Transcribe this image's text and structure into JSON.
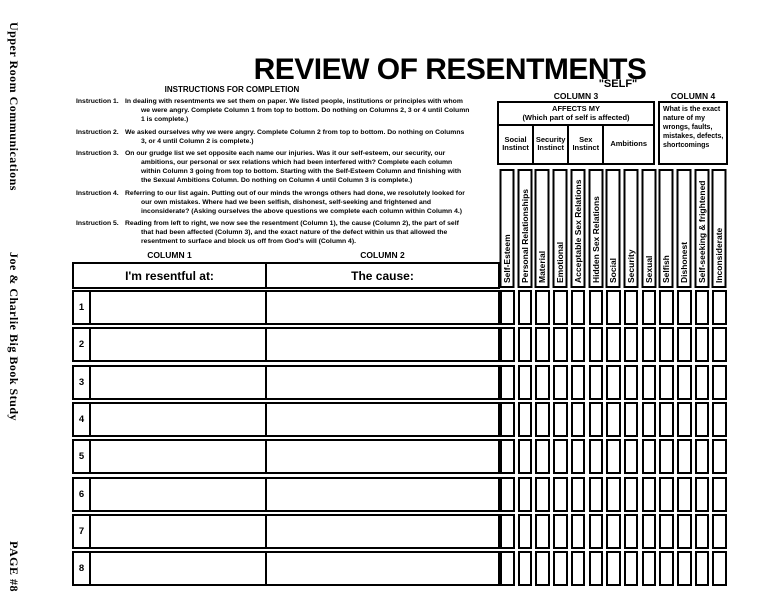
{
  "colors": {
    "ink": "#000000",
    "paper": "#ffffff"
  },
  "page": {
    "side_top": "Upper Room Communications",
    "side_middle": "Joe & Charlie Big Book Study",
    "side_bottom": "PAGE #8",
    "title": "REVIEW OF RESENTMENTS",
    "self_label": "\"SELF\""
  },
  "instructions": {
    "heading": "INSTRUCTIONS FOR COMPLETION",
    "items": [
      {
        "label": "Instruction 1.",
        "text": "In dealing with resentments we set them on paper. We listed people, institutions or principles with whom we were angry. Complete Column 1 from top to bottom. Do nothing on Columns 2, 3 or 4 until Column 1 is complete.)"
      },
      {
        "label": "Instruction 2.",
        "text": "We asked ourselves why we were angry. Complete Column 2 from top to bottom. Do nothing on Columns 3, or 4 until Column 2 is complete.)"
      },
      {
        "label": "Instruction 3.",
        "text": "On our grudge list we set opposite each name our injuries. Was it our self-esteem, our security, our ambitions, our personal or sex relations which had been interfered with? Complete each column within Column 3 going from top to bottom. Starting with the Self-Esteem Column and finishing with the Sexual Ambitions Column. Do nothing on Column 4 until Column 3 is complete.)"
      },
      {
        "label": "Instruction 4.",
        "text": "Referring to our list again. Putting out of our minds the wrongs others had done, we resolutely looked for our own mistakes. Where had we been selfish, dishonest, self-seeking and frightened and inconsiderate? (Asking ourselves the above questions we complete each column within Column 4.)"
      },
      {
        "label": "Instruction 5.",
        "text": "Reading from left to right, we now see the resentment (Column 1), the cause (Column 2), the part of self that had been affected (Column 3), and the exact nature of the defect within us that allowed the resentment to surface and block us off from God's will (Column 4)."
      }
    ]
  },
  "column3": {
    "label": "COLUMN 3",
    "affects_line1": "AFFECTS MY",
    "affects_line2": "(Which part of self is affected)",
    "groups": [
      {
        "name": "Social Instinct",
        "span": 2
      },
      {
        "name": "Security Instinct",
        "span": 2
      },
      {
        "name": "Sex Instinct",
        "span": 2
      },
      {
        "name": "Ambitions",
        "span": 3
      }
    ],
    "sub_columns": [
      "Self-Esteem",
      "Personal Relationships",
      "Material",
      "Emotional",
      "Acceptable Sex Relations",
      "Hidden Sex Relations",
      "Social",
      "Security",
      "Sexual"
    ]
  },
  "column4": {
    "label": "COLUMN 4",
    "description": "What is the exact nature of my wrongs, faults, mistakes, defects, shortcomings",
    "sub_columns": [
      "Selfish",
      "Dishonest",
      "Self-seeking & frightened",
      "Inconsiderate"
    ]
  },
  "table": {
    "column1_label": "COLUMN 1",
    "column2_label": "COLUMN 2",
    "column1_header": "I'm resentful at:",
    "column2_header": "The cause:",
    "row_numbers": [
      "1",
      "2",
      "3",
      "4",
      "5",
      "6",
      "7",
      "8"
    ]
  }
}
